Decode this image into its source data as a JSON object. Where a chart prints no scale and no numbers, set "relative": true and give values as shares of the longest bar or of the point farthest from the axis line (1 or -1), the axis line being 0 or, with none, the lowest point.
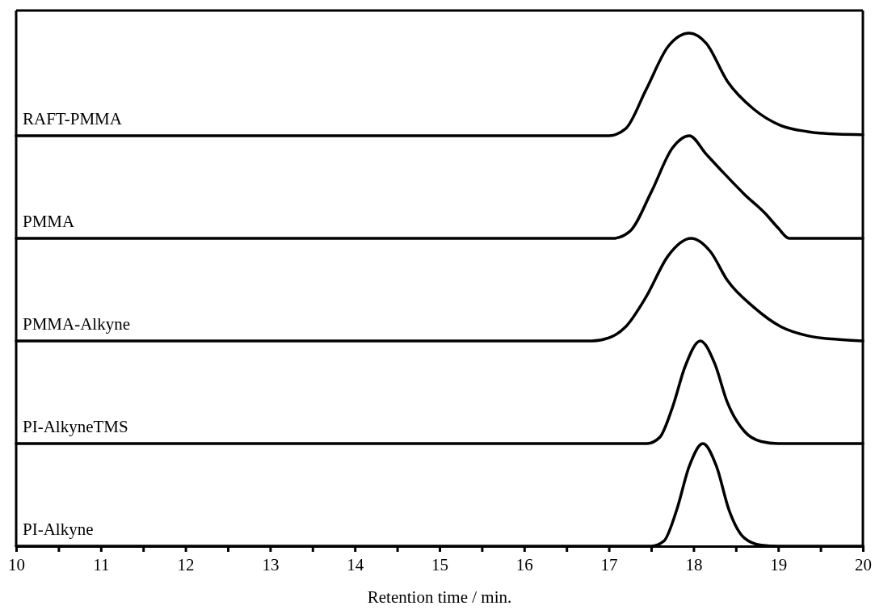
{
  "chart_data": [
    {
      "type": "line",
      "relative": true,
      "xlim": [
        10,
        20
      ],
      "tick_labels": false,
      "x": [
        10,
        17.0,
        17.2,
        17.44,
        17.7,
        17.95,
        18.15,
        18.4,
        18.71,
        19.03,
        19.35,
        19.7,
        20
      ],
      "series": [
        {
          "name": "RAFT-PMMA",
          "color": "#000000",
          "values": [
            0,
            0,
            0.07,
            0.45,
            0.87,
            1,
            0.9,
            0.53,
            0.26,
            0.1,
            0.04,
            0.015,
            0.01
          ]
        }
      ]
    },
    {
      "type": "line",
      "relative": true,
      "xlim": [
        10,
        20
      ],
      "tick_labels": false,
      "x": [
        10,
        17.05,
        17.25,
        17.5,
        17.75,
        17.95,
        18.15,
        18.33,
        18.6,
        18.85,
        19.0,
        19.13,
        20
      ],
      "series": [
        {
          "name": "PMMA",
          "color": "#000000",
          "values": [
            0,
            0,
            0.07,
            0.45,
            0.88,
            1,
            0.82,
            0.66,
            0.43,
            0.24,
            0.1,
            0,
            0
          ]
        }
      ]
    },
    {
      "type": "line",
      "relative": true,
      "xlim": [
        10,
        20
      ],
      "tick_labels": false,
      "x": [
        10,
        16.8,
        17.0,
        17.2,
        17.44,
        17.7,
        17.97,
        18.2,
        18.4,
        18.71,
        19.03,
        19.35,
        19.7,
        20
      ],
      "series": [
        {
          "name": "PMMA-Alkyne",
          "color": "#000000",
          "values": [
            0,
            0,
            0.03,
            0.14,
            0.43,
            0.83,
            1,
            0.87,
            0.59,
            0.33,
            0.14,
            0.05,
            0.015,
            0
          ]
        }
      ]
    },
    {
      "type": "line",
      "relative": true,
      "xlim": [
        10,
        20
      ],
      "tick_labels": false,
      "x": [
        10,
        17.45,
        17.6,
        17.75,
        17.9,
        18.08,
        18.25,
        18.4,
        18.6,
        18.8,
        19.0,
        20
      ],
      "series": [
        {
          "name": "PI-AlkyneTMS",
          "color": "#000000",
          "values": [
            0,
            0,
            0.06,
            0.35,
            0.75,
            1,
            0.78,
            0.4,
            0.12,
            0.02,
            0,
            0
          ]
        }
      ]
    },
    {
      "type": "line",
      "relative": true,
      "xlim": [
        10,
        20
      ],
      "tick_labels": "x",
      "xlabel": "Retention time / min.",
      "xticks": [
        10,
        {
          "value": 10.5,
          "label": null
        },
        11,
        {
          "value": 11.5,
          "label": null
        },
        12,
        {
          "value": 12.5,
          "label": null
        },
        13,
        {
          "value": 13.5,
          "label": null
        },
        14,
        {
          "value": 14.5,
          "label": null
        },
        15,
        {
          "value": 15.5,
          "label": null
        },
        16,
        {
          "value": 16.5,
          "label": null
        },
        17,
        {
          "value": 17.5,
          "label": null
        },
        18,
        {
          "value": 18.5,
          "label": null
        },
        19,
        {
          "value": 19.5,
          "label": null
        },
        20
      ],
      "x": [
        10,
        17.5,
        17.65,
        17.8,
        17.95,
        18.11,
        18.27,
        18.42,
        18.6,
        18.8,
        19.0,
        20
      ],
      "series": [
        {
          "name": "PI-Alkyne",
          "color": "#000000",
          "values": [
            0,
            0,
            0.05,
            0.35,
            0.78,
            1,
            0.78,
            0.35,
            0.08,
            0.01,
            0,
            0
          ]
        }
      ]
    }
  ]
}
